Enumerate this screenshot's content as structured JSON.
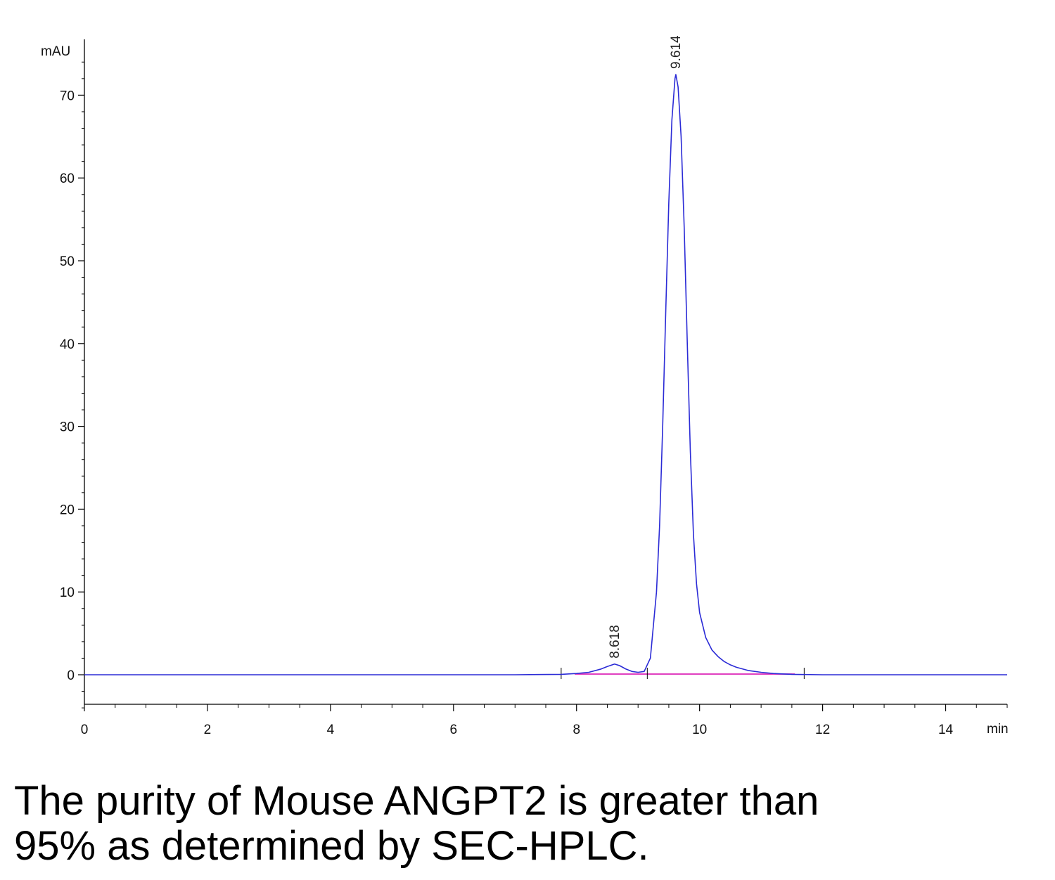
{
  "chart_data": {
    "type": "line",
    "title": "",
    "y_unit_label": "mAU",
    "x_unit_label": "min",
    "xlim": [
      0,
      15
    ],
    "ylim": [
      -4,
      75
    ],
    "x_ticks": [
      0,
      2,
      4,
      6,
      8,
      10,
      12,
      14
    ],
    "y_ticks": [
      0,
      10,
      20,
      30,
      40,
      50,
      60,
      70
    ],
    "x_tick_labels": [
      "0",
      "2",
      "4",
      "6",
      "8",
      "10",
      "12",
      "14"
    ],
    "y_tick_labels": [
      "0",
      "10",
      "20",
      "30",
      "40",
      "50",
      "60",
      "70"
    ],
    "grid": false,
    "colors": {
      "signal": "#2b2bd6",
      "baseline": "#e040c0",
      "axis": "#000000"
    },
    "series": [
      {
        "x": [
          0,
          1,
          2,
          3,
          4,
          5,
          6,
          7,
          7.75,
          8.0,
          8.2,
          8.4,
          8.5,
          8.618,
          8.7,
          8.8,
          8.9,
          9.0,
          9.1,
          9.2,
          9.3,
          9.35,
          9.4,
          9.45,
          9.5,
          9.55,
          9.6,
          9.614,
          9.65,
          9.7,
          9.75,
          9.8,
          9.85,
          9.9,
          9.95,
          10.0,
          10.1,
          10.2,
          10.3,
          10.4,
          10.5,
          10.6,
          10.8,
          11.0,
          11.2,
          11.5,
          12,
          13,
          14,
          15
        ],
        "y": [
          0,
          0,
          0,
          0,
          0,
          0,
          0,
          0,
          0.05,
          0.15,
          0.3,
          0.7,
          1.0,
          1.3,
          1.1,
          0.7,
          0.4,
          0.3,
          0.4,
          2.0,
          10.0,
          18.0,
          30.0,
          44.0,
          57.0,
          67.0,
          72.0,
          72.5,
          71.0,
          65.0,
          54.0,
          40.0,
          27.0,
          17.0,
          11.0,
          7.5,
          4.5,
          3.0,
          2.2,
          1.6,
          1.2,
          0.9,
          0.5,
          0.3,
          0.15,
          0.05,
          0,
          0,
          0,
          0
        ]
      }
    ],
    "baseline_segments": [
      [
        7.97,
        11.55
      ]
    ],
    "integration_marks": [
      7.75,
      9.15,
      11.7
    ],
    "peak_labels": [
      {
        "x": 8.618,
        "y": 1.3,
        "text": "8.618"
      },
      {
        "x": 9.614,
        "y": 72.5,
        "text": "9.614"
      }
    ]
  },
  "caption": {
    "line1": "The purity of Mouse ANGPT2 is greater than",
    "line2": "95% as determined by SEC-HPLC."
  }
}
